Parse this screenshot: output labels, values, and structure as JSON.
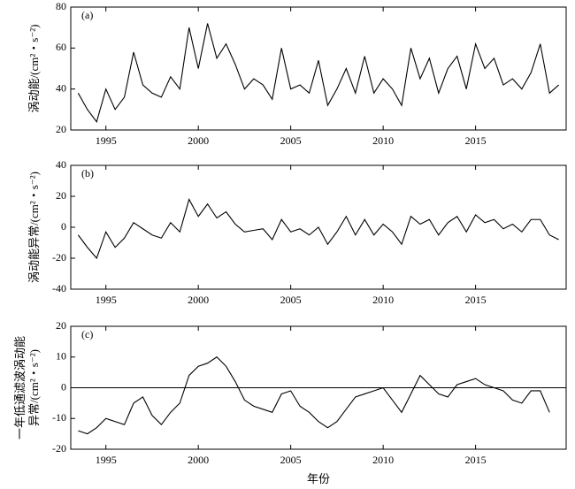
{
  "chart_data": [
    {
      "type": "line",
      "label": "(a)",
      "ylabel": [
        "涡动能/(cm²・s⁻²)"
      ],
      "xlim": [
        1993.1,
        2019.9
      ],
      "xticks": [
        1995,
        2000,
        2005,
        2010,
        2015
      ],
      "ylim": [
        20,
        80
      ],
      "yticks": [
        20,
        40,
        60,
        80
      ],
      "x": [
        1993.5,
        1994,
        1994.5,
        1995,
        1995.5,
        1996,
        1996.5,
        1997,
        1997.5,
        1998,
        1998.5,
        1999,
        1999.5,
        2000,
        2000.5,
        2001,
        2001.5,
        2002,
        2002.5,
        2003,
        2003.5,
        2004,
        2004.5,
        2005,
        2005.5,
        2006,
        2006.5,
        2007,
        2007.5,
        2008,
        2008.5,
        2009,
        2009.5,
        2010,
        2010.5,
        2011,
        2011.5,
        2012,
        2012.5,
        2013,
        2013.5,
        2014,
        2014.5,
        2015,
        2015.5,
        2016,
        2016.5,
        2017,
        2017.5,
        2018,
        2018.5,
        2019,
        2019.5
      ],
      "series": [
        {
          "color": "#000000",
          "values": [
            38,
            30,
            24,
            40,
            30,
            36,
            58,
            42,
            38,
            36,
            46,
            40,
            70,
            50,
            72,
            55,
            62,
            52,
            40,
            45,
            42,
            35,
            60,
            40,
            42,
            38,
            54,
            32,
            40,
            50,
            38,
            56,
            38,
            45,
            40,
            32,
            60,
            45,
            55,
            38,
            50,
            56,
            40,
            62,
            50,
            55,
            42,
            45,
            40,
            48,
            62,
            38,
            42
          ]
        }
      ]
    },
    {
      "type": "line",
      "label": "(b)",
      "ylabel": [
        "涡动能异常/(cm²・s⁻²)"
      ],
      "xlim": [
        1993.1,
        2019.9
      ],
      "xticks": [
        1995,
        2000,
        2005,
        2010,
        2015
      ],
      "ylim": [
        -40,
        40
      ],
      "yticks": [
        -40,
        -20,
        0,
        20,
        40
      ],
      "x": [
        1993.5,
        1994,
        1994.5,
        1995,
        1995.5,
        1996,
        1996.5,
        1997,
        1997.5,
        1998,
        1998.5,
        1999,
        1999.5,
        2000,
        2000.5,
        2001,
        2001.5,
        2002,
        2002.5,
        2003,
        2003.5,
        2004,
        2004.5,
        2005,
        2005.5,
        2006,
        2006.5,
        2007,
        2007.5,
        2008,
        2008.5,
        2009,
        2009.5,
        2010,
        2010.5,
        2011,
        2011.5,
        2012,
        2012.5,
        2013,
        2013.5,
        2014,
        2014.5,
        2015,
        2015.5,
        2016,
        2016.5,
        2017,
        2017.5,
        2018,
        2018.5,
        2019,
        2019.5
      ],
      "series": [
        {
          "color": "#000000",
          "values": [
            -5,
            -13,
            -20,
            -3,
            -13,
            -7,
            3,
            -1,
            -5,
            -7,
            3,
            -3,
            18,
            7,
            15,
            6,
            10,
            2,
            -3,
            -2,
            -1,
            -8,
            5,
            -3,
            -1,
            -5,
            0,
            -11,
            -3,
            7,
            -5,
            5,
            -5,
            2,
            -3,
            -11,
            7,
            2,
            5,
            -5,
            3,
            7,
            -3,
            8,
            3,
            5,
            -1,
            2,
            -3,
            5,
            5,
            -5,
            -8
          ]
        }
      ]
    },
    {
      "type": "line",
      "label": "(c)",
      "ylabel": [
        "一年低通滤波涡动能",
        "异常/(cm²・s⁻²)"
      ],
      "xlabel": "年份",
      "xlim": [
        1993.1,
        2019.9
      ],
      "xticks": [
        1995,
        2000,
        2005,
        2010,
        2015
      ],
      "ylim": [
        -20,
        20
      ],
      "yticks": [
        -20,
        -10,
        0,
        10,
        20
      ],
      "hline": 0,
      "x": [
        1993.5,
        1994,
        1994.5,
        1995,
        1995.5,
        1996,
        1996.5,
        1997,
        1997.5,
        1998,
        1998.5,
        1999,
        1999.5,
        2000,
        2000.5,
        2001,
        2001.5,
        2002,
        2002.5,
        2003,
        2003.5,
        2004,
        2004.5,
        2005,
        2005.5,
        2006,
        2006.5,
        2007,
        2007.5,
        2008,
        2008.5,
        2009,
        2009.5,
        2010,
        2010.5,
        2011,
        2011.5,
        2012,
        2012.5,
        2013,
        2013.5,
        2014,
        2014.5,
        2015,
        2015.5,
        2016,
        2016.5,
        2017,
        2017.5,
        2018,
        2018.5,
        2019
      ],
      "series": [
        {
          "color": "#000000",
          "values": [
            -14,
            -15,
            -13,
            -10,
            -11,
            -12,
            -5,
            -3,
            -9,
            -12,
            -8,
            -5,
            4,
            7,
            8,
            10,
            7,
            2,
            -4,
            -6,
            -7,
            -8,
            -2,
            -1,
            -6,
            -8,
            -11,
            -13,
            -11,
            -7,
            -3,
            -2,
            -1,
            0,
            -4,
            -8,
            -2,
            4,
            1,
            -2,
            -3,
            1,
            2,
            3,
            1,
            0,
            -1,
            -4,
            -5,
            -1,
            -1,
            -8
          ]
        }
      ]
    }
  ]
}
